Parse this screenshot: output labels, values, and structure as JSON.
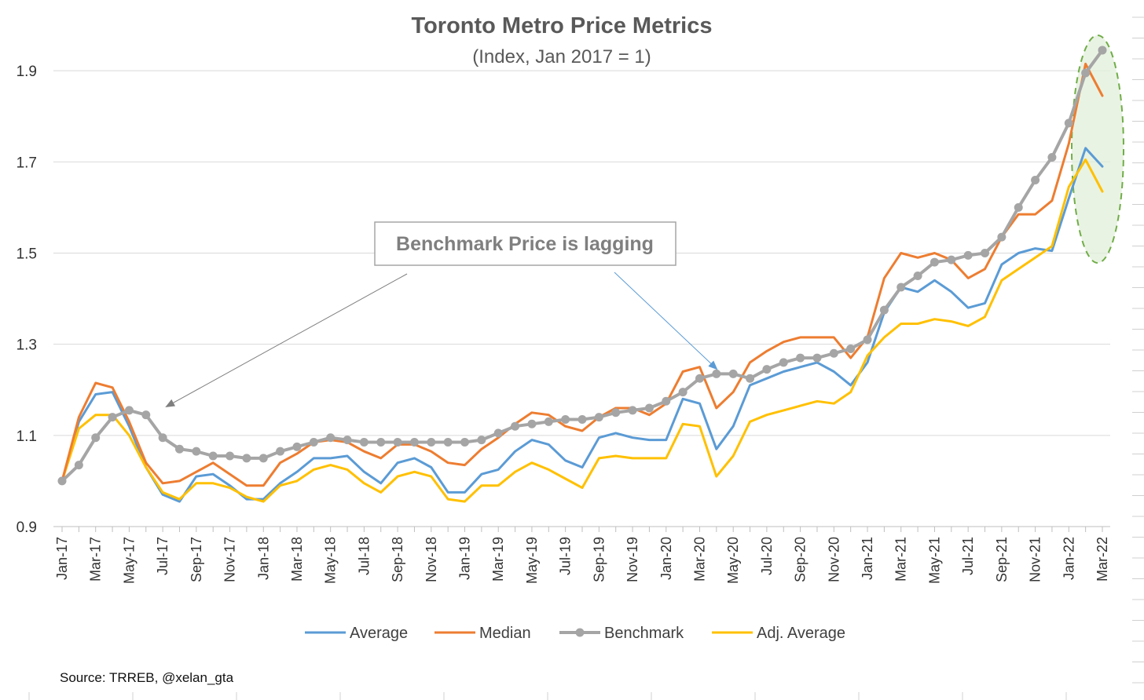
{
  "chart_data": {
    "type": "line",
    "title": "Toronto Metro Price Metrics",
    "subtitle": "(Index, Jan 2017 = 1)",
    "ylim": [
      0.9,
      2.0
    ],
    "yticks": [
      "0.9",
      "1.1",
      "1.3",
      "1.5",
      "1.7",
      "1.9"
    ],
    "ytick_values": [
      0.9,
      1.1,
      1.3,
      1.5,
      1.7,
      1.9
    ],
    "x": [
      "Jan-17",
      "Feb-17",
      "Mar-17",
      "Apr-17",
      "May-17",
      "Jun-17",
      "Jul-17",
      "Aug-17",
      "Sep-17",
      "Oct-17",
      "Nov-17",
      "Dec-17",
      "Jan-18",
      "Feb-18",
      "Mar-18",
      "Apr-18",
      "May-18",
      "Jun-18",
      "Jul-18",
      "Aug-18",
      "Sep-18",
      "Oct-18",
      "Nov-18",
      "Dec-18",
      "Jan-19",
      "Feb-19",
      "Mar-19",
      "Apr-19",
      "May-19",
      "Jun-19",
      "Jul-19",
      "Aug-19",
      "Sep-19",
      "Oct-19",
      "Nov-19",
      "Dec-19",
      "Jan-20",
      "Feb-20",
      "Mar-20",
      "Apr-20",
      "May-20",
      "Jun-20",
      "Jul-20",
      "Aug-20",
      "Sep-20",
      "Oct-20",
      "Nov-20",
      "Dec-20",
      "Jan-21",
      "Feb-21",
      "Mar-21",
      "Apr-21",
      "May-21",
      "Jun-21",
      "Jul-21",
      "Aug-21",
      "Sep-21",
      "Oct-21",
      "Nov-21",
      "Dec-21",
      "Jan-22",
      "Feb-22",
      "Mar-22"
    ],
    "xtick_labels": [
      "Jan-17",
      "Mar-17",
      "May-17",
      "Jul-17",
      "Sep-17",
      "Nov-17",
      "Jan-18",
      "Mar-18",
      "May-18",
      "Jul-18",
      "Sep-18",
      "Nov-18",
      "Jan-19",
      "Mar-19",
      "May-19",
      "Jul-19",
      "Sep-19",
      "Nov-19",
      "Jan-20",
      "Mar-20",
      "May-20",
      "Jul-20",
      "Sep-20",
      "Nov-20",
      "Jan-21",
      "Mar-21",
      "May-21",
      "Jul-21",
      "Sep-21",
      "Nov-21",
      "Jan-22",
      "Mar-22"
    ],
    "series": [
      {
        "name": "Average",
        "color": "#5b9bd5",
        "markers": false,
        "values": [
          1.0,
          1.13,
          1.19,
          1.195,
          1.12,
          1.03,
          0.97,
          0.955,
          1.01,
          1.015,
          0.99,
          0.96,
          0.96,
          0.995,
          1.02,
          1.05,
          1.05,
          1.055,
          1.02,
          0.995,
          1.04,
          1.05,
          1.03,
          0.975,
          0.975,
          1.015,
          1.025,
          1.065,
          1.09,
          1.08,
          1.045,
          1.03,
          1.095,
          1.105,
          1.095,
          1.09,
          1.09,
          1.18,
          1.17,
          1.07,
          1.12,
          1.21,
          1.225,
          1.24,
          1.25,
          1.26,
          1.24,
          1.21,
          1.26,
          1.37,
          1.425,
          1.415,
          1.44,
          1.415,
          1.38,
          1.39,
          1.475,
          1.5,
          1.51,
          1.505,
          1.62,
          1.73,
          1.69
        ]
      },
      {
        "name": "Median",
        "color": "#ed7d31",
        "markers": false,
        "values": [
          1.0,
          1.14,
          1.215,
          1.205,
          1.13,
          1.04,
          0.995,
          1.0,
          1.02,
          1.04,
          1.015,
          0.99,
          0.99,
          1.04,
          1.06,
          1.085,
          1.09,
          1.085,
          1.065,
          1.05,
          1.08,
          1.08,
          1.065,
          1.04,
          1.035,
          1.07,
          1.095,
          1.125,
          1.15,
          1.145,
          1.12,
          1.11,
          1.14,
          1.16,
          1.16,
          1.145,
          1.17,
          1.24,
          1.25,
          1.16,
          1.195,
          1.26,
          1.285,
          1.305,
          1.315,
          1.315,
          1.315,
          1.27,
          1.315,
          1.445,
          1.5,
          1.49,
          1.5,
          1.485,
          1.445,
          1.465,
          1.535,
          1.585,
          1.585,
          1.615,
          1.74,
          1.915,
          1.845
        ]
      },
      {
        "name": "Benchmark",
        "color": "#a5a5a5",
        "markers": true,
        "values": [
          1.0,
          1.035,
          1.095,
          1.14,
          1.155,
          1.145,
          1.095,
          1.07,
          1.065,
          1.055,
          1.055,
          1.05,
          1.05,
          1.065,
          1.075,
          1.085,
          1.095,
          1.09,
          1.085,
          1.085,
          1.085,
          1.085,
          1.085,
          1.085,
          1.085,
          1.09,
          1.105,
          1.12,
          1.125,
          1.13,
          1.135,
          1.135,
          1.14,
          1.15,
          1.155,
          1.16,
          1.175,
          1.195,
          1.225,
          1.235,
          1.235,
          1.225,
          1.245,
          1.26,
          1.27,
          1.27,
          1.28,
          1.29,
          1.31,
          1.375,
          1.425,
          1.45,
          1.48,
          1.485,
          1.495,
          1.5,
          1.535,
          1.6,
          1.66,
          1.71,
          1.785,
          1.895,
          1.945
        ]
      },
      {
        "name": "Adj. Average",
        "color": "#ffc000",
        "markers": false,
        "values": [
          1.0,
          1.115,
          1.145,
          1.145,
          1.1,
          1.03,
          0.975,
          0.96,
          0.995,
          0.995,
          0.985,
          0.965,
          0.955,
          0.99,
          1.0,
          1.025,
          1.035,
          1.025,
          0.995,
          0.975,
          1.01,
          1.02,
          1.01,
          0.96,
          0.955,
          0.99,
          0.99,
          1.02,
          1.04,
          1.025,
          1.005,
          0.985,
          1.05,
          1.055,
          1.05,
          1.05,
          1.05,
          1.125,
          1.12,
          1.01,
          1.055,
          1.13,
          1.145,
          1.155,
          1.165,
          1.175,
          1.17,
          1.195,
          1.275,
          1.315,
          1.345,
          1.345,
          1.355,
          1.35,
          1.34,
          1.36,
          1.44,
          1.465,
          1.49,
          1.515,
          1.645,
          1.705,
          1.635
        ]
      }
    ],
    "annotation": "Benchmark Price is lagging",
    "legend_position": "bottom",
    "grid": "horizontal",
    "highlight": "last two months circled"
  },
  "source": "Source: TRREB, @xelan_gta"
}
